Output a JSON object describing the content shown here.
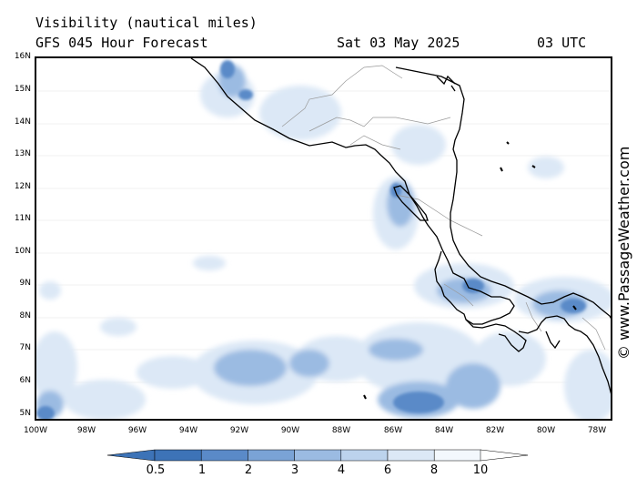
{
  "header": {
    "title": "Visibility (nautical miles)",
    "forecast": "GFS 045 Hour Forecast",
    "date": "Sat 03 May 2025",
    "time": "03 UTC"
  },
  "axes": {
    "lat_labels": [
      "16N",
      "15N",
      "14N",
      "13N",
      "12N",
      "11N",
      "10N",
      "9N",
      "8N",
      "7N",
      "6N",
      "5N"
    ],
    "lon_labels": [
      "100W",
      "98W",
      "96W",
      "94W",
      "92W",
      "90W",
      "88W",
      "86W",
      "84W",
      "82W",
      "80W",
      "78W"
    ]
  },
  "colorbar": {
    "labels": [
      "0.5",
      "1",
      "2",
      "3",
      "4",
      "6",
      "8",
      "10"
    ],
    "colors": [
      "#3d73b7",
      "#5a8ac8",
      "#7aa3d6",
      "#9bbbe2",
      "#bcd3ed",
      "#dce8f6",
      "#f3f8fd"
    ]
  },
  "credit": "© www.PassageWeather.com",
  "colors": {
    "land_outline": "#000000",
    "border": "#999999",
    "ocean": "#ffffff"
  }
}
